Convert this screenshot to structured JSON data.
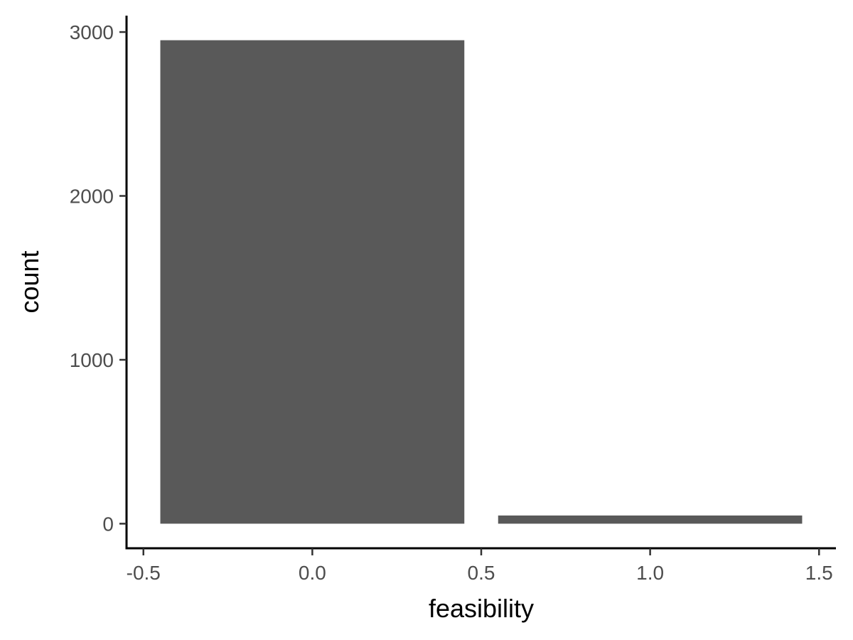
{
  "chart_data": {
    "type": "bar",
    "title": "",
    "xlabel": "feasibility",
    "ylabel": "count",
    "x": [
      0,
      1
    ],
    "values": [
      2950,
      50
    ],
    "bar_width": 0.9,
    "xlim": [
      -0.55,
      1.55
    ],
    "ylim": [
      -150,
      3100
    ],
    "x_ticks": [
      -0.5,
      0.0,
      0.5,
      1.0,
      1.5
    ],
    "x_tick_labels": [
      "-0.5",
      "0.0",
      "0.5",
      "1.0",
      "1.5"
    ],
    "y_ticks": [
      0,
      1000,
      2000,
      3000
    ],
    "y_tick_labels": [
      "0",
      "1000",
      "2000",
      "3000"
    ],
    "grid": false,
    "legend": "none",
    "bar_color": "#595959"
  }
}
